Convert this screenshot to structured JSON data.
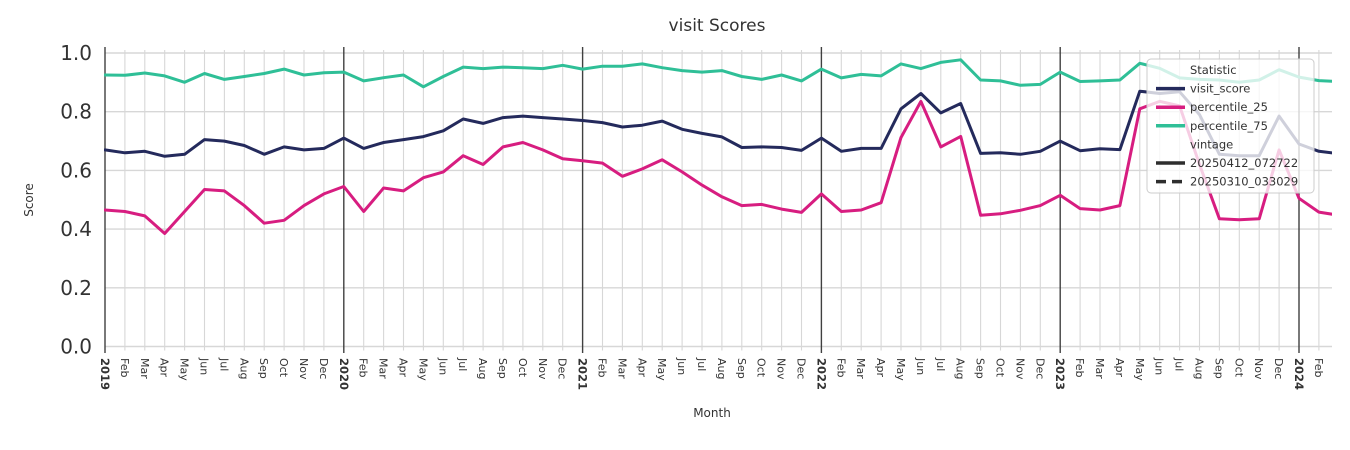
{
  "page": {
    "background": "#ffffff"
  },
  "chart_data": {
    "type": "line",
    "title": "visit Scores",
    "xlabel": "Month",
    "ylabel": "Score",
    "ylim": [
      0.0,
      1.0
    ],
    "ytick_labels": [
      "0.0",
      "0.2",
      "0.4",
      "0.6",
      "0.8",
      "1.0"
    ],
    "ytick_values": [
      0.0,
      0.2,
      0.4,
      0.6,
      0.8,
      1.0
    ],
    "grid": true,
    "x_tick_labels": [
      "2019",
      "Feb",
      "Mar",
      "Apr",
      "May",
      "Jun",
      "Jul",
      "Aug",
      "Sep",
      "Oct",
      "Nov",
      "Dec",
      "2020",
      "Feb",
      "Mar",
      "Apr",
      "May",
      "Jun",
      "Jul",
      "Aug",
      "Sep",
      "Oct",
      "Nov",
      "Dec",
      "2021",
      "Feb",
      "Mar",
      "Apr",
      "May",
      "Jun",
      "Jul",
      "Aug",
      "Sep",
      "Oct",
      "Nov",
      "Dec",
      "2022",
      "Feb",
      "Mar",
      "Apr",
      "May",
      "Jun",
      "Jul",
      "Aug",
      "Sep",
      "Oct",
      "Nov",
      "Dec",
      "2023",
      "Feb",
      "Mar",
      "Apr",
      "May",
      "Jun",
      "Jul",
      "Aug",
      "Sep",
      "Oct",
      "Nov",
      "Dec",
      "2024",
      "Feb"
    ],
    "year_label_indices": [
      0,
      12,
      24,
      36,
      48,
      60
    ],
    "legend_position": "upper right",
    "legend": {
      "title": "Statistic",
      "vintage_title": "vintage",
      "vintage_entries": [
        {
          "label": "20250412_072722",
          "style": "solid"
        },
        {
          "label": "20250310_033029",
          "style": "dashed"
        }
      ],
      "vintage_color": "#2e2e2e"
    },
    "colors": {
      "grid": "#d7d7d7",
      "year_separator": "#404040",
      "text": "#333333",
      "legend_border": "#cccccc"
    },
    "series": [
      {
        "name": "visit_score",
        "color": "#242a5c",
        "values": [
          0.67,
          0.66,
          0.665,
          0.648,
          0.655,
          0.705,
          0.7,
          0.685,
          0.655,
          0.68,
          0.67,
          0.675,
          0.71,
          0.675,
          0.695,
          0.705,
          0.715,
          0.735,
          0.775,
          0.76,
          0.78,
          0.785,
          0.78,
          0.775,
          0.77,
          0.763,
          0.748,
          0.754,
          0.768,
          0.74,
          0.726,
          0.714,
          0.678,
          0.68,
          0.678,
          0.668,
          0.71,
          0.665,
          0.675,
          0.675,
          0.81,
          0.862,
          0.796,
          0.828,
          0.658,
          0.66,
          0.655,
          0.665,
          0.7,
          0.667,
          0.674,
          0.671,
          0.87,
          0.862,
          0.868,
          0.79,
          0.655,
          0.65,
          0.65,
          0.785,
          0.69,
          0.665,
          0.657
        ]
      },
      {
        "name": "percentile_25",
        "color": "#d71d80",
        "values": [
          0.465,
          0.46,
          0.445,
          0.385,
          0.46,
          0.535,
          0.53,
          0.48,
          0.42,
          0.43,
          0.48,
          0.52,
          0.545,
          0.46,
          0.54,
          0.53,
          0.575,
          0.595,
          0.65,
          0.62,
          0.68,
          0.695,
          0.67,
          0.64,
          0.633,
          0.625,
          0.58,
          0.605,
          0.636,
          0.595,
          0.55,
          0.51,
          0.48,
          0.484,
          0.468,
          0.457,
          0.52,
          0.46,
          0.465,
          0.49,
          0.712,
          0.835,
          0.68,
          0.716,
          0.447,
          0.452,
          0.464,
          0.48,
          0.515,
          0.47,
          0.465,
          0.48,
          0.81,
          0.835,
          0.82,
          0.62,
          0.435,
          0.432,
          0.435,
          0.67,
          0.505,
          0.458,
          0.447
        ]
      },
      {
        "name": "percentile_75",
        "color": "#2fbf97",
        "values": [
          0.925,
          0.924,
          0.932,
          0.922,
          0.9,
          0.93,
          0.91,
          0.92,
          0.93,
          0.945,
          0.925,
          0.933,
          0.935,
          0.905,
          0.916,
          0.925,
          0.885,
          0.92,
          0.952,
          0.947,
          0.952,
          0.95,
          0.947,
          0.958,
          0.945,
          0.955,
          0.955,
          0.963,
          0.95,
          0.94,
          0.935,
          0.94,
          0.92,
          0.91,
          0.925,
          0.905,
          0.945,
          0.915,
          0.927,
          0.922,
          0.963,
          0.947,
          0.968,
          0.977,
          0.908,
          0.905,
          0.89,
          0.893,
          0.935,
          0.903,
          0.905,
          0.908,
          0.965,
          0.948,
          0.915,
          0.91,
          0.908,
          0.9,
          0.908,
          0.943,
          0.918,
          0.906,
          0.903
        ]
      }
    ]
  }
}
